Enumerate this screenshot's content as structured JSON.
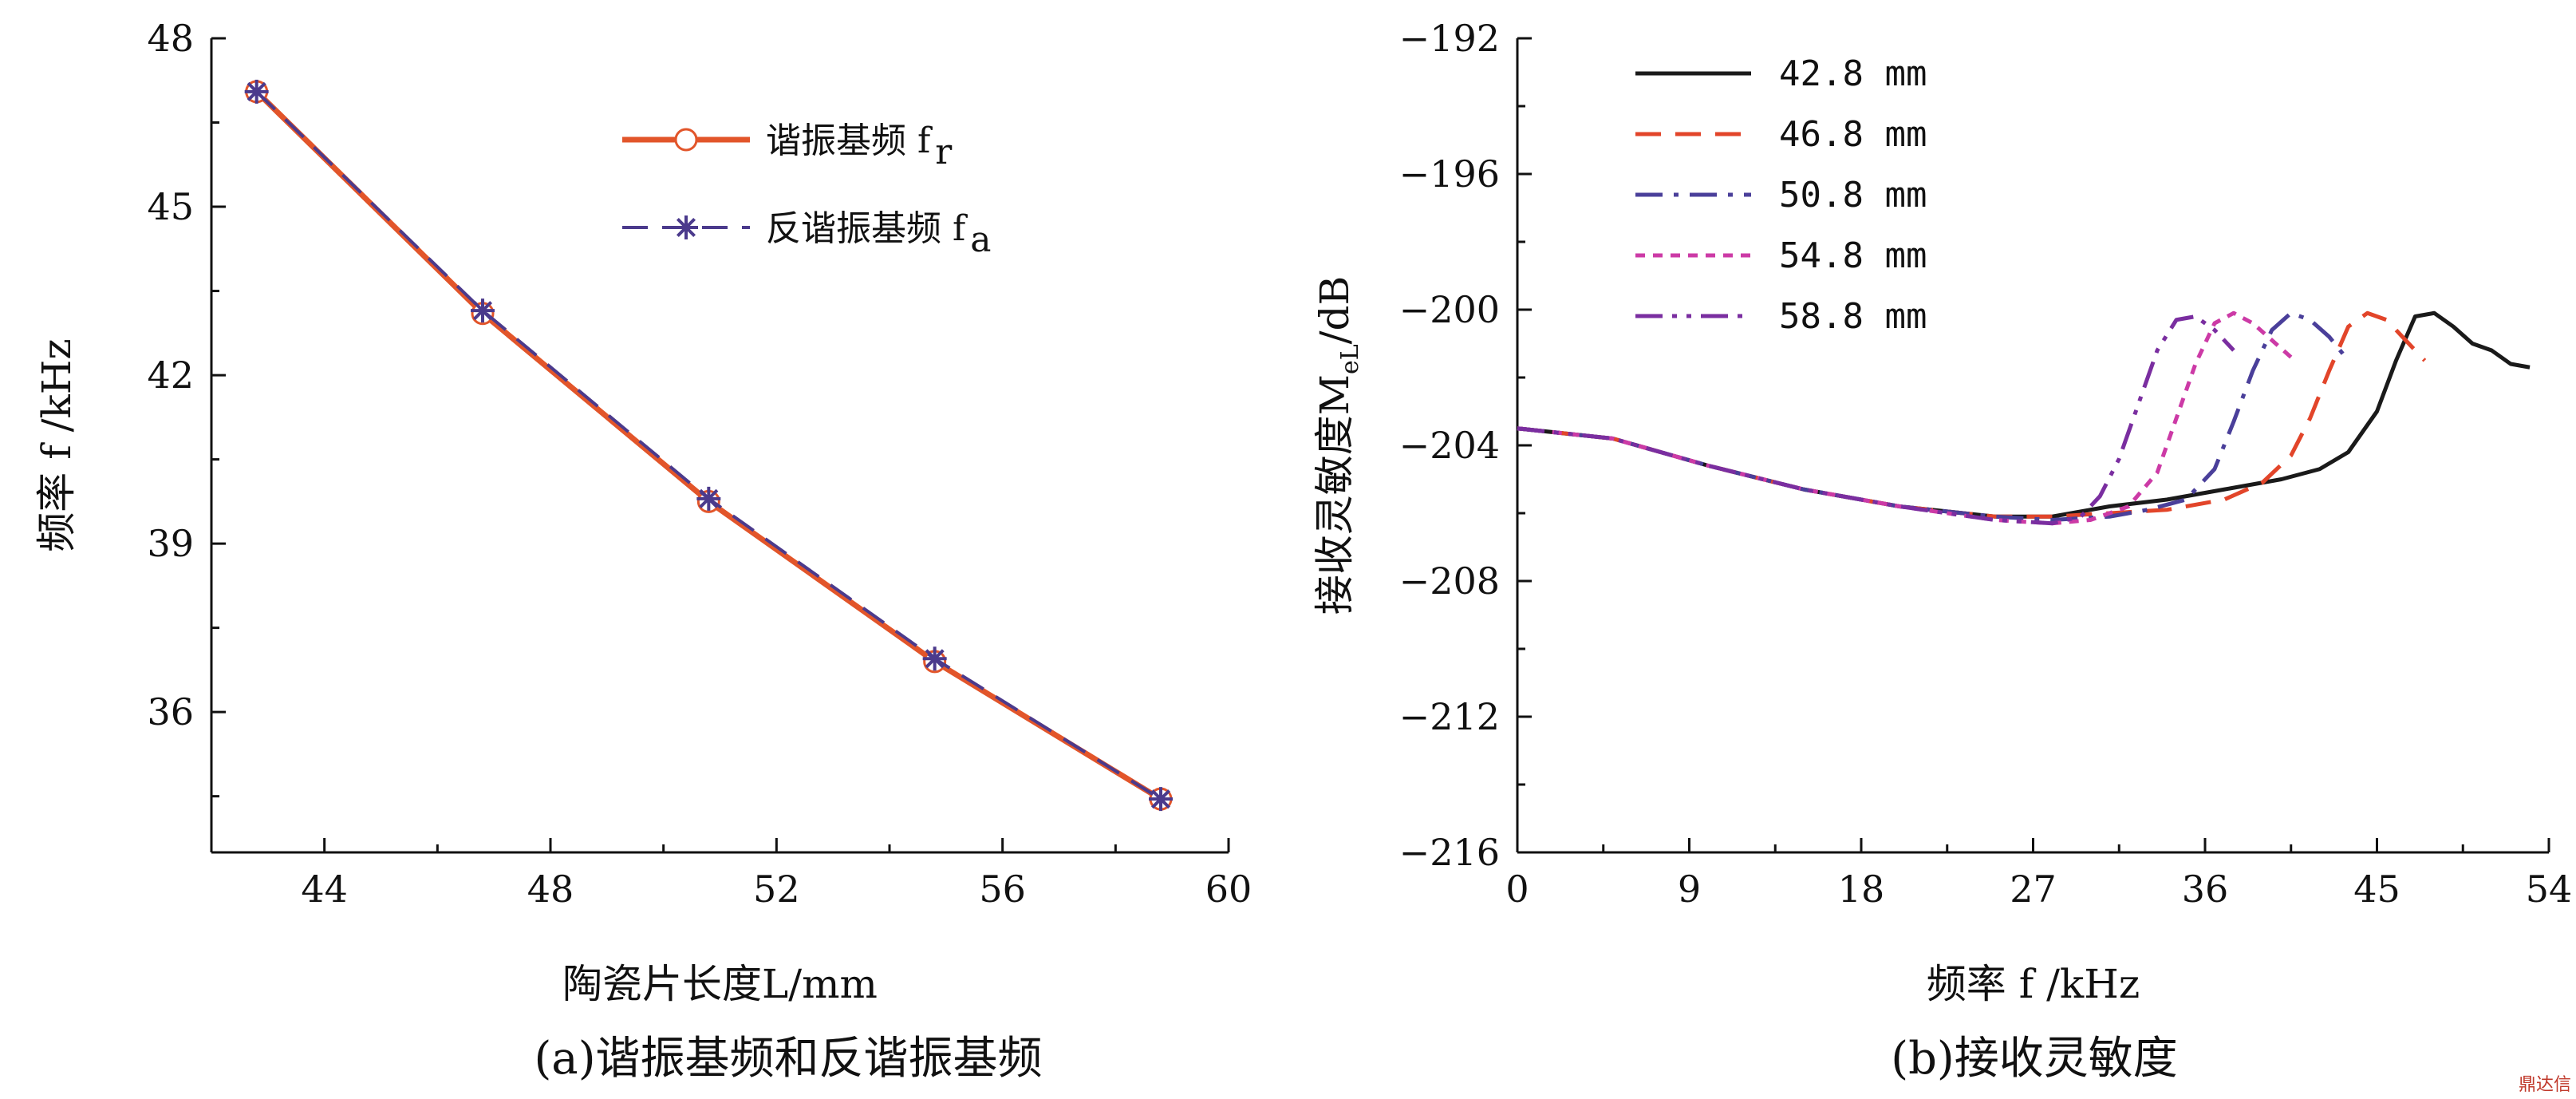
{
  "watermark": "鼎达信",
  "chart_data": [
    {
      "type": "line",
      "caption": "(a)谐振基频和反谐振基频",
      "xlabel": "陶瓷片长度L/mm",
      "ylabel": "频率 f /kHz",
      "xlim": [
        42,
        60
      ],
      "ylim": [
        33.5,
        48
      ],
      "xticks": [
        44,
        48,
        52,
        56,
        60
      ],
      "yticks": [
        36,
        39,
        42,
        45,
        48
      ],
      "legend_position": "top-right",
      "x": [
        42.8,
        46.8,
        50.8,
        54.8,
        58.8
      ],
      "series": [
        {
          "name": "谐振基频 f",
          "subscript": "r",
          "values": [
            47.05,
            43.1,
            39.75,
            36.9,
            34.45
          ],
          "color": "#e2552a",
          "marker": "circle",
          "dash": "solid"
        },
        {
          "name": "反谐振基频 f",
          "subscript": "a",
          "values": [
            47.05,
            43.15,
            39.8,
            36.95,
            34.45
          ],
          "color": "#4b3a8c",
          "marker": "star",
          "dash": "dashed"
        }
      ]
    },
    {
      "type": "line",
      "caption": "(b)接收灵敏度",
      "xlabel": "频率 f /kHz",
      "ylabel": "接收灵敏度M",
      "ylabel_subscript": "eL",
      "ylabel_suffix": "/dB",
      "xlim": [
        0,
        54
      ],
      "ylim": [
        -216,
        -192
      ],
      "xticks": [
        0,
        9,
        18,
        27,
        36,
        45,
        54
      ],
      "yticks": [
        -192,
        -196,
        -200,
        -204,
        -208,
        -212,
        -216
      ],
      "xtick_labels": [
        "0",
        "9",
        "18",
        "27",
        "36",
        "45",
        "54"
      ],
      "ytick_labels": [
        "−192",
        "−196",
        "−200",
        "−204",
        "−208",
        "−212",
        "−216"
      ],
      "legend_position": "top-left",
      "series": [
        {
          "name": "42.8 mm",
          "color": "#1a1a1a",
          "dash": "solid",
          "x": [
            0,
            5,
            10,
            15,
            20,
            25,
            28,
            31,
            34,
            37,
            40,
            42,
            43.5,
            45,
            46,
            47,
            48,
            49,
            50,
            51,
            52,
            53
          ],
          "y": [
            -203.5,
            -203.8,
            -204.6,
            -205.3,
            -205.8,
            -206.1,
            -206.1,
            -205.8,
            -205.6,
            -205.3,
            -205.0,
            -204.7,
            -204.2,
            -203.0,
            -201.5,
            -200.2,
            -200.1,
            -200.5,
            -201.0,
            -201.2,
            -201.6,
            -201.7
          ]
        },
        {
          "name": "46.8 mm",
          "color": "#e2452a",
          "dash": "dashed",
          "x": [
            0,
            5,
            10,
            15,
            20,
            25,
            28,
            31,
            34,
            37,
            39,
            40.5,
            41.5,
            42.5,
            43.5,
            44.5,
            45.5,
            46.5,
            47.5
          ],
          "y": [
            -203.5,
            -203.8,
            -204.6,
            -205.3,
            -205.8,
            -206.1,
            -206.1,
            -206.0,
            -205.9,
            -205.6,
            -205.1,
            -204.3,
            -203.2,
            -201.8,
            -200.5,
            -200.1,
            -200.3,
            -200.9,
            -201.5
          ]
        },
        {
          "name": "50.8 mm",
          "color": "#4a3f9a",
          "dash": "dashdot",
          "x": [
            0,
            5,
            10,
            15,
            20,
            25,
            28,
            31,
            33,
            35,
            36.5,
            37.5,
            38.5,
            39.5,
            40.5,
            41.5,
            42.5,
            43.5
          ],
          "y": [
            -203.5,
            -203.8,
            -204.6,
            -205.3,
            -205.8,
            -206.1,
            -206.2,
            -206.1,
            -205.9,
            -205.6,
            -204.7,
            -203.3,
            -201.8,
            -200.6,
            -200.1,
            -200.3,
            -200.8,
            -201.5
          ]
        },
        {
          "name": "54.8 mm",
          "color": "#cc3aa6",
          "dash": "dotted",
          "x": [
            0,
            5,
            10,
            15,
            20,
            25,
            28,
            30,
            32,
            33.5,
            34.5,
            35.5,
            36.5,
            37.5,
            38.5,
            39.5,
            40.5
          ],
          "y": [
            -203.5,
            -203.8,
            -204.6,
            -205.3,
            -205.8,
            -206.2,
            -206.3,
            -206.2,
            -205.8,
            -204.8,
            -203.2,
            -201.6,
            -200.4,
            -200.1,
            -200.4,
            -200.9,
            -201.4
          ]
        },
        {
          "name": "58.8 mm",
          "color": "#7a2ea0",
          "dash": "dashdotdot",
          "x": [
            0,
            5,
            10,
            15,
            20,
            25,
            28,
            29.5,
            30.5,
            31.5,
            32.5,
            33.5,
            34.5,
            35.5,
            36.5,
            37.5
          ],
          "y": [
            -203.5,
            -203.8,
            -204.6,
            -205.3,
            -205.8,
            -206.2,
            -206.3,
            -206.1,
            -205.5,
            -204.4,
            -202.8,
            -201.2,
            -200.3,
            -200.2,
            -200.6,
            -201.2
          ]
        }
      ]
    }
  ]
}
